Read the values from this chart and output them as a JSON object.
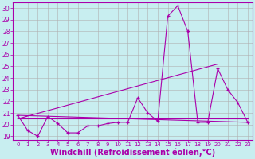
{
  "background_color": "#c8eef0",
  "grid_color": "#b0b0b0",
  "line_color": "#aa00aa",
  "xlabel": "Windchill (Refroidissement éolien,°C)",
  "xlabel_fontsize": 7,
  "xlim": [
    -0.5,
    23.5
  ],
  "ylim": [
    18.7,
    30.5
  ],
  "yticks": [
    19,
    20,
    21,
    22,
    23,
    24,
    25,
    26,
    27,
    28,
    29,
    30
  ],
  "xticks": [
    0,
    1,
    2,
    3,
    4,
    5,
    6,
    7,
    8,
    9,
    10,
    11,
    12,
    13,
    14,
    15,
    16,
    17,
    18,
    19,
    20,
    21,
    22,
    23
  ],
  "main_x": [
    0,
    1,
    2,
    3,
    4,
    5,
    6,
    7,
    8,
    9,
    10,
    11,
    12,
    13,
    14,
    15,
    16,
    17,
    18,
    19,
    20,
    21,
    22,
    23
  ],
  "main_y": [
    20.8,
    19.5,
    19.0,
    20.7,
    20.1,
    19.3,
    19.3,
    19.9,
    19.9,
    20.1,
    20.2,
    20.2,
    22.3,
    21.0,
    20.3,
    29.3,
    30.2,
    28.0,
    20.2,
    20.2,
    24.8,
    23.0,
    21.9,
    20.2
  ],
  "trend1_x": [
    0,
    23
  ],
  "trend1_y": [
    20.8,
    20.2
  ],
  "trend2_x": [
    0,
    20
  ],
  "trend2_y": [
    20.5,
    25.2
  ],
  "trend3_x": [
    0,
    23
  ],
  "trend3_y": [
    20.5,
    20.5
  ],
  "figwidth": 3.2,
  "figheight": 2.0,
  "dpi": 100
}
